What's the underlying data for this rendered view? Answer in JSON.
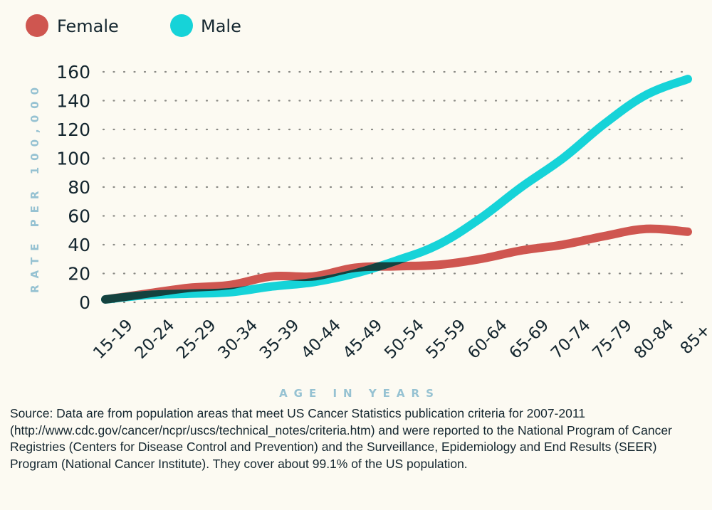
{
  "chart_data": {
    "type": "line",
    "title": "",
    "xlabel": "AGE IN YEARS",
    "ylabel": "RATE PER 100,000",
    "ylim": [
      0,
      160
    ],
    "yticks": [
      0,
      20,
      40,
      60,
      80,
      100,
      120,
      140,
      160
    ],
    "grid": true,
    "legend_position": "top-left",
    "categories": [
      "15-19",
      "20-24",
      "25-29",
      "30-34",
      "35-39",
      "40-44",
      "45-49",
      "50-54",
      "55-59",
      "60-64",
      "65-69",
      "70-74",
      "75-79",
      "80-84",
      "85+"
    ],
    "series": [
      {
        "name": "Female",
        "color": "#cf5650",
        "values": [
          2,
          6,
          10,
          12,
          18,
          18,
          24,
          25,
          26,
          30,
          36,
          40,
          46,
          51,
          49
        ]
      },
      {
        "name": "Male",
        "color": "#16d3d8",
        "values": [
          2,
          5,
          6,
          7,
          11,
          14,
          20,
          29,
          40,
          58,
          80,
          100,
          124,
          144,
          155
        ]
      }
    ],
    "overlap_color": "#14423f"
  },
  "source_note": "Source: Data are from population areas that meet US Cancer Statistics publication criteria for 2007-2011 (http://www.cdc.gov/cancer/ncpr/uscs/technical_notes/criteria.htm) and were reported to the National Program of Cancer Registries (Centers for Disease Control and Prevention) and the Surveillance, Epidemiology and End Results (SEER) Program (National Cancer Institute). They cover about 99.1% of the US population."
}
